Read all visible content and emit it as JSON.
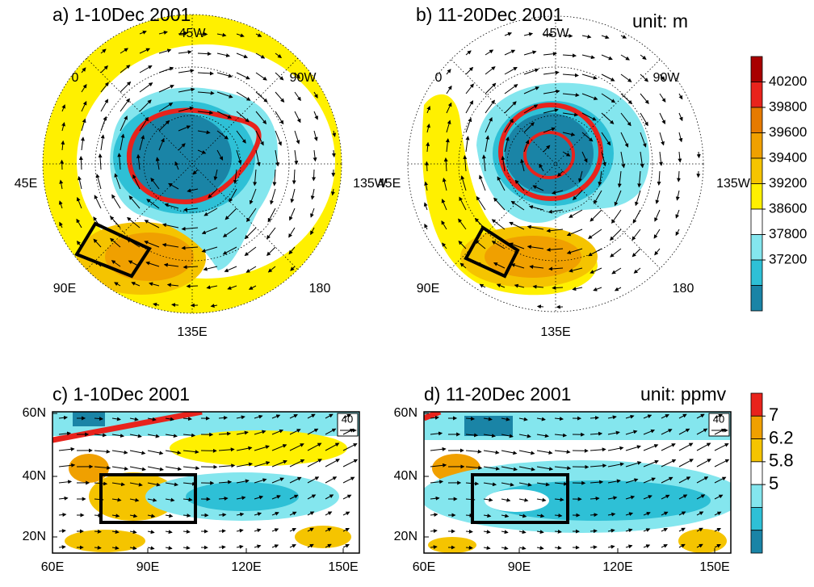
{
  "panels": [
    {
      "title": "a) 1-10Dec 2001",
      "lon_labels": [
        "45W",
        "0",
        "90W",
        "45E",
        "135W",
        "90E",
        "180",
        "135E"
      ]
    },
    {
      "title": "b) 11-20Dec 2001",
      "unit": "unit: m",
      "lon_labels": [
        "45W",
        "0",
        "90W",
        "45E",
        "135W",
        "90E",
        "180",
        "135E"
      ]
    },
    {
      "title": "c) 1-10Dec 2001",
      "reference_vector": "40",
      "yticks": [
        "60N",
        "40N",
        "20N"
      ],
      "xticks": [
        "60E",
        "90E",
        "120E",
        "150E"
      ]
    },
    {
      "title": "d) 11-20Dec 2001",
      "unit": "unit: ppmv",
      "reference_vector": "40",
      "yticks": [
        "60N",
        "40N",
        "20N"
      ],
      "xticks": [
        "60E",
        "90E",
        "120E",
        "150E"
      ]
    }
  ],
  "colorbars": [
    {
      "ticks": [
        40200,
        39800,
        39600,
        39400,
        39200,
        38600,
        37800,
        37200
      ],
      "colors": [
        "#a80000",
        "#e8231c",
        "#e67a00",
        "#f0a000",
        "#f5c400",
        "#fff000",
        "#ffffff",
        "#84e6ee",
        "#2ec0d6",
        "#1a84a6"
      ]
    },
    {
      "ticks": [
        7,
        6.2,
        5.8,
        5
      ],
      "colors": [
        "#e8231c",
        "#f0a000",
        "#f5c400",
        "#ffffff",
        "#84e6ee",
        "#2ec0d6",
        "#1a84a6"
      ]
    }
  ]
}
